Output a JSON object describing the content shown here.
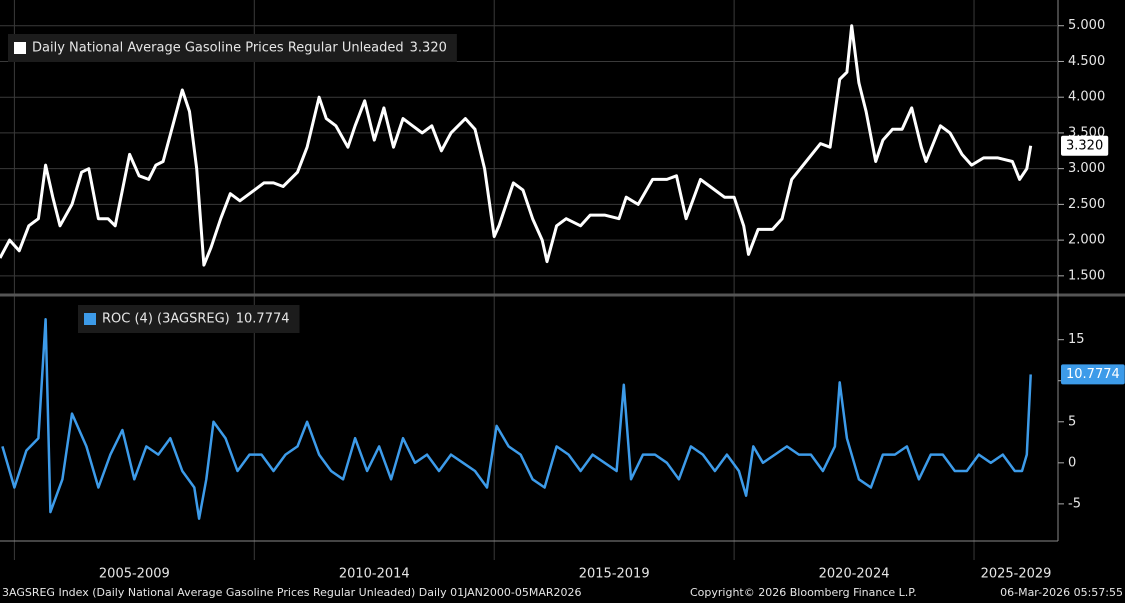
{
  "chart_data": [
    {
      "type": "line",
      "x": [
        2004.7,
        2004.9,
        2005.1,
        2005.3,
        2005.5,
        2005.65,
        2005.8,
        2005.95,
        2006.2,
        2006.4,
        2006.55,
        2006.75,
        2006.95,
        2007.1,
        2007.4,
        2007.6,
        2007.8,
        2007.95,
        2008.1,
        2008.3,
        2008.5,
        2008.65,
        2008.8,
        2008.95,
        2009.1,
        2009.3,
        2009.5,
        2009.7,
        2009.9,
        2010.2,
        2010.4,
        2010.6,
        2010.9,
        2011.1,
        2011.35,
        2011.5,
        2011.7,
        2011.95,
        2012.1,
        2012.3,
        2012.5,
        2012.7,
        2012.9,
        2013.1,
        2013.3,
        2013.5,
        2013.7,
        2013.9,
        2014.1,
        2014.4,
        2014.6,
        2014.8,
        2015.0,
        2015.1,
        2015.4,
        2015.6,
        2015.8,
        2016.0,
        2016.1,
        2016.3,
        2016.5,
        2016.8,
        2017.0,
        2017.3,
        2017.6,
        2017.75,
        2018.0,
        2018.3,
        2018.6,
        2018.8,
        2019.0,
        2019.3,
        2019.5,
        2019.8,
        2020.0,
        2020.2,
        2020.3,
        2020.5,
        2020.8,
        2021.0,
        2021.2,
        2021.5,
        2021.8,
        2022.0,
        2022.2,
        2022.35,
        2022.45,
        2022.6,
        2022.75,
        2022.95,
        2023.1,
        2023.3,
        2023.5,
        2023.7,
        2023.9,
        2024.0,
        2024.3,
        2024.5,
        2024.75,
        2024.95,
        2025.2,
        2025.5,
        2025.8,
        2025.95,
        2026.1,
        2026.18
      ],
      "series": [
        {
          "name": "Daily National Average Gasoline Prices Regular Unleaded",
          "color": "#ffffff",
          "values": [
            1.75,
            2.0,
            1.85,
            2.2,
            2.3,
            3.05,
            2.6,
            2.2,
            2.5,
            2.95,
            3.0,
            2.3,
            2.3,
            2.2,
            3.2,
            2.9,
            2.85,
            3.05,
            3.1,
            3.6,
            4.1,
            3.8,
            3.0,
            1.65,
            1.9,
            2.3,
            2.65,
            2.55,
            2.65,
            2.8,
            2.8,
            2.75,
            2.95,
            3.3,
            4.0,
            3.7,
            3.6,
            3.3,
            3.6,
            3.95,
            3.4,
            3.85,
            3.3,
            3.7,
            3.6,
            3.5,
            3.6,
            3.25,
            3.5,
            3.7,
            3.55,
            3.0,
            2.05,
            2.2,
            2.8,
            2.7,
            2.3,
            2.0,
            1.7,
            2.2,
            2.3,
            2.2,
            2.35,
            2.35,
            2.3,
            2.6,
            2.5,
            2.85,
            2.85,
            2.9,
            2.3,
            2.85,
            2.75,
            2.6,
            2.6,
            2.2,
            1.8,
            2.15,
            2.15,
            2.3,
            2.85,
            3.1,
            3.35,
            3.3,
            4.25,
            4.35,
            5.0,
            4.2,
            3.8,
            3.1,
            3.4,
            3.55,
            3.55,
            3.85,
            3.3,
            3.1,
            3.6,
            3.5,
            3.2,
            3.05,
            3.15,
            3.15,
            3.1,
            2.85,
            3.0,
            3.32
          ],
          "last_value_label": "3.320"
        }
      ],
      "ylim": [
        1.26,
        5.36
      ],
      "yticks": [
        {
          "value": 1.5,
          "label": "1.500"
        },
        {
          "value": 2,
          "label": "2.000"
        },
        {
          "value": 2.5,
          "label": "2.500"
        },
        {
          "value": 3,
          "label": "3.000"
        },
        {
          "value": 3.5,
          "label": "3.500"
        },
        {
          "value": 4,
          "label": "4.000"
        },
        {
          "value": 4.5,
          "label": "4.500"
        },
        {
          "value": 5,
          "label": "5.000"
        }
      ],
      "grid": true
    },
    {
      "type": "line",
      "x": [
        2004.75,
        2005.0,
        2005.25,
        2005.5,
        2005.65,
        2005.75,
        2006.0,
        2006.2,
        2006.5,
        2006.75,
        2007.0,
        2007.25,
        2007.5,
        2007.75,
        2008.0,
        2008.25,
        2008.5,
        2008.75,
        2008.85,
        2009.0,
        2009.15,
        2009.4,
        2009.65,
        2009.9,
        2010.15,
        2010.4,
        2010.65,
        2010.9,
        2011.1,
        2011.35,
        2011.6,
        2011.85,
        2012.1,
        2012.35,
        2012.6,
        2012.85,
        2013.1,
        2013.35,
        2013.6,
        2013.85,
        2014.1,
        2014.35,
        2014.6,
        2014.85,
        2015.05,
        2015.3,
        2015.55,
        2015.8,
        2016.05,
        2016.3,
        2016.55,
        2016.8,
        2017.05,
        2017.3,
        2017.55,
        2017.7,
        2017.85,
        2018.1,
        2018.35,
        2018.6,
        2018.85,
        2019.1,
        2019.35,
        2019.6,
        2019.85,
        2020.1,
        2020.25,
        2020.4,
        2020.6,
        2020.85,
        2021.1,
        2021.35,
        2021.6,
        2021.85,
        2022.1,
        2022.2,
        2022.35,
        2022.6,
        2022.85,
        2023.1,
        2023.35,
        2023.6,
        2023.85,
        2024.1,
        2024.35,
        2024.6,
        2024.85,
        2025.1,
        2025.35,
        2025.6,
        2025.85,
        2026.0,
        2026.1,
        2026.18
      ],
      "series": [
        {
          "name": "ROC (4) (3AGSREG)",
          "color": "#3d9be9",
          "values": [
            2,
            -3,
            1.5,
            3,
            17.5,
            -6,
            -2,
            6,
            2,
            -3,
            1,
            4,
            -2,
            2,
            1,
            3,
            -1,
            -3,
            -6.8,
            -2,
            5,
            3,
            -1,
            1,
            1,
            -1,
            1,
            2,
            5,
            1,
            -1,
            -2,
            3,
            -1,
            2,
            -2,
            3,
            0,
            1,
            -1,
            1,
            0,
            -1,
            -3,
            4.5,
            2,
            1,
            -2,
            -3,
            2,
            1,
            -1,
            1,
            0,
            -1,
            9.5,
            -2,
            1,
            1,
            0,
            -2,
            2,
            1,
            -1,
            1,
            -1,
            -4,
            2,
            0,
            1,
            2,
            1,
            1,
            -1,
            2,
            9.8,
            3,
            -2,
            -3,
            1,
            1,
            2,
            -2,
            1,
            1,
            -1,
            -1,
            1,
            0,
            1,
            -1,
            -1,
            1,
            10.7774
          ]
        }
      ],
      "ylim": [
        -9.4,
        20.2
      ],
      "yticks": [
        -5,
        0,
        5,
        10,
        15
      ],
      "grid": true
    }
  ],
  "x_axis": {
    "xlim": [
      2004.7,
      2026.75
    ],
    "xticks": [
      2005,
      2010,
      2015,
      2020,
      2025
    ],
    "period_labels": [
      "2005-2009",
      "2010-2014",
      "2015-2019",
      "2020-2024",
      "2025-2029"
    ]
  },
  "footer": {
    "description": "3AGSREG Index (Daily National Average Gasoline Prices Regular Unleaded) Daily 01JAN2000-05MAR2026",
    "copyright": "Copyright© 2026 Bloomberg Finance L.P.",
    "timestamp": "06-Mar-2026 05:57:55"
  }
}
